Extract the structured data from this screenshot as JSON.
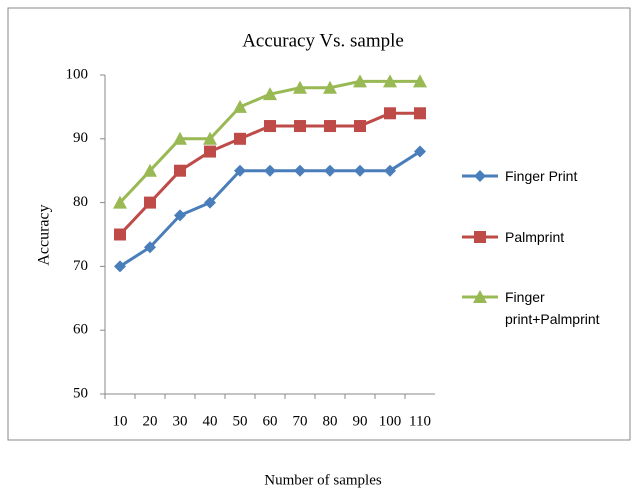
{
  "chart_data": {
    "type": "line",
    "title": "Accuracy Vs. sample",
    "x_label": "Number of samples",
    "y_label": "Accuracy",
    "categories": [
      "10",
      "20",
      "30",
      "40",
      "50",
      "60",
      "70",
      "80",
      "90",
      "100",
      "110"
    ],
    "series": [
      {
        "name": "Finger Print",
        "color": "#4a7ebb",
        "marker": "diamond",
        "values": [
          70,
          73,
          78,
          80,
          85,
          85,
          85,
          85,
          85,
          85,
          88
        ]
      },
      {
        "name": "Palmprint",
        "color": "#be4b48",
        "marker": "square",
        "values": [
          75,
          80,
          85,
          88,
          90,
          92,
          92,
          92,
          92,
          94,
          94
        ]
      },
      {
        "name": "Finger print+Palmprint",
        "color": "#98b954",
        "marker": "triangle",
        "values": [
          80,
          85,
          90,
          90,
          95,
          97,
          98,
          98,
          99,
          99,
          99
        ]
      }
    ],
    "ylim": [
      50,
      100
    ],
    "yticks": [
      50,
      60,
      70,
      80,
      90,
      100
    ],
    "grid": false,
    "legend": "right"
  }
}
